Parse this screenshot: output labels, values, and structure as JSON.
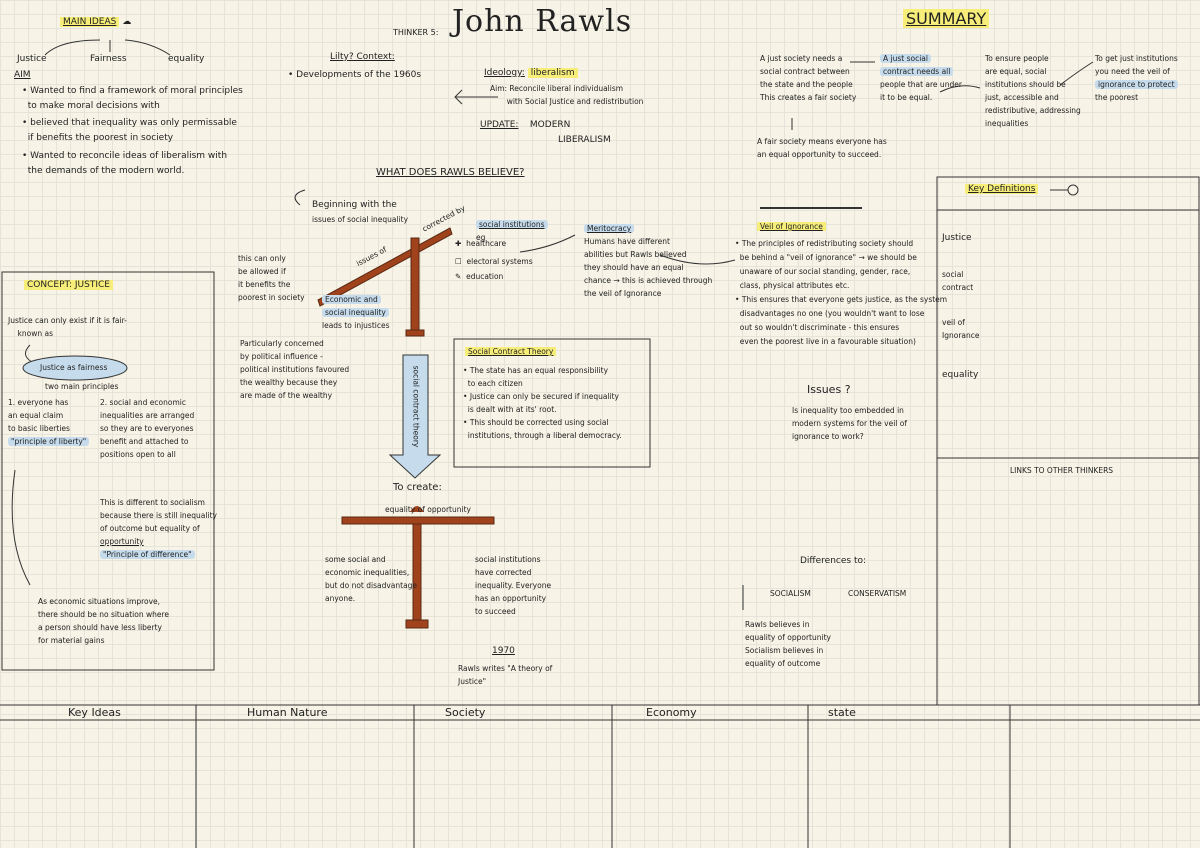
{
  "header": {
    "thinker_label": "THINKER 5:",
    "name": "John Rawls",
    "summary_heading": "SUMMARY"
  },
  "main_ideas": {
    "heading": "MAIN IDEAS",
    "branches": [
      "Justice",
      "Fairness",
      "equality"
    ],
    "aim_label": "AIM",
    "aims": [
      [
        "Wanted to find a framework of moral principles",
        "to make moral decisions with"
      ],
      [
        "believed that inequality was only permissable",
        "if benefits the poorest in society"
      ],
      [
        "Wanted to reconcile ideas of liberalism with",
        "the demands of the modern world."
      ]
    ]
  },
  "context": {
    "heading": "Lilty? Context:",
    "item": "Developments of the 1960s",
    "ideology_label": "Ideology:",
    "ideology_value": "liberalism",
    "aim_lines": [
      "Aim: Reconcile liberal individualism",
      "with Social Justice and redistribution"
    ],
    "update_label": "UPDATE:",
    "update_value": [
      "MODERN",
      "LIBERALISM"
    ]
  },
  "beliefs": {
    "heading": "WHAT DOES RAWLS BELIEVE?",
    "beginning": [
      "Beginning with the",
      "issues of social inequality"
    ],
    "beam_left_label": "issues of",
    "beam_right_label": "corrected by",
    "social_institutions_heading": "social institutions",
    "eg": "eg",
    "institutions": [
      "healthcare",
      "electoral systems",
      "education"
    ],
    "left_note": [
      "this can only",
      "be allowed if",
      "it benefits the",
      "poorest in society"
    ],
    "econ_tag": [
      "Economic and",
      "social inequality"
    ],
    "econ_leads": "leads to injustices",
    "political": [
      "Particularly concerned",
      "by political influence -",
      "political institutions favoured",
      "the wealthy because they",
      "are made of the wealthy"
    ],
    "pole_label": "social contract theory",
    "meritocracy_heading": "Meritocracy",
    "meritocracy": [
      "Humans have different",
      "abilities but Rawls believed",
      "they should have an equal",
      "chance → this is achieved through",
      "the veil of Ignorance"
    ]
  },
  "concept": {
    "heading": "CONCEPT: JUSTICE",
    "intro": [
      "Justice can only exist if it is fair-",
      "known as"
    ],
    "cloud": "Justice as fairness",
    "two_main": "two main principles",
    "p1": [
      "1. everyone has",
      "an equal claim",
      "to basic liberties"
    ],
    "p1_tag": "\"principle of liberty\"",
    "p2": [
      "2. social and economic",
      "inequalities are arranged",
      "so they are to everyones",
      "benefit and attached to",
      "positions open to all"
    ],
    "socialism_note": [
      "This is different to socialism",
      "because there is still inequality",
      "of outcome but equality of",
      "opportunity"
    ],
    "p2_tag": "\"Principle of difference\"",
    "economic_note": [
      "As economic situations improve,",
      "there should be no situation where",
      "a person should have less liberty",
      "for material gains"
    ]
  },
  "social_contract": {
    "heading": "Social Contract Theory",
    "items": [
      [
        "The state has an equal responsibility",
        "to each citizen"
      ],
      [
        "Justice can only be secured if inequality",
        "is dealt with at its' root."
      ],
      [
        "This should be corrected using social",
        "institutions, through a liberal democracy."
      ]
    ]
  },
  "create": {
    "to_create": "To create:",
    "beam_label": "equality of opportunity",
    "left_note": [
      "some social and",
      "economic inequalities,",
      "but do not disadvantage",
      "anyone."
    ],
    "right_note": [
      "social institutions",
      "have corrected",
      "inequality. Everyone",
      "has an opportunity",
      "to succeed"
    ],
    "year": "1970",
    "book": [
      "Rawls writes \"A theory of",
      "Justice\""
    ]
  },
  "veil": {
    "heading": "Veil of Ignorance",
    "lines": [
      "The principles of redistributing society should",
      "be behind a \"veil of ignorance\" → we should be",
      "unaware of our social standing, gender, race,",
      "class, physical attributes etc.",
      "This ensures that everyone gets justice, as the system",
      "disadvantages no one (you wouldn't want to lose",
      "out so wouldn't discriminate - this ensures",
      "even the poorest live in a favourable situation)"
    ],
    "issues_heading": "Issues",
    "issues": [
      "Is inequality too embedded in",
      "modern systems for the veil of",
      "ignorance to work?"
    ]
  },
  "differences": {
    "heading": "Differences to:",
    "socialism": "SOCIALISM",
    "conservatism": "CONSERVATISM",
    "text": [
      "Rawls believes in",
      "equality of opportunity",
      "Socialism believes in",
      "equality of outcome"
    ]
  },
  "summary": {
    "col1": [
      "A just society needs a",
      "social contract between",
      "the state and the people",
      "This creates a fair society"
    ],
    "col1b": [
      "A fair society means everyone has",
      "an equal opportunity to succeed."
    ],
    "col2": [
      "A just social",
      "contract needs all",
      "people that are under",
      "it to be equal."
    ],
    "col3": [
      "To ensure people",
      "are equal, social",
      "institutions should be",
      "just, accessible and",
      "redistributive, addressing",
      "inequalities"
    ],
    "col4": [
      "To get just institutions",
      "you need the veil of",
      "ignorance to protect",
      "the poorest"
    ]
  },
  "definitions": {
    "heading": "Key Definitions",
    "terms": [
      "Justice",
      "social contract",
      "veil of Ignorance",
      "equality"
    ]
  },
  "links": {
    "heading": "LINKS TO OTHER THINKERS"
  },
  "footer": {
    "columns": [
      "Key Ideas",
      "Human Nature",
      "Society",
      "Economy",
      "state"
    ]
  },
  "colors": {
    "accent_yellow": "#f7ee7a",
    "accent_blue": "#c6dcec",
    "wood": "#a0431c"
  }
}
